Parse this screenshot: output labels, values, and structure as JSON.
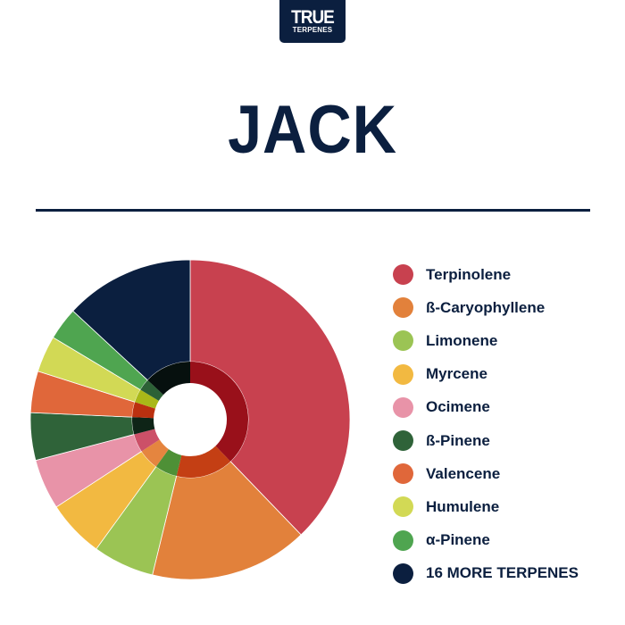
{
  "logo": {
    "line1": "TRUE",
    "line2": "TERPENES"
  },
  "title": "JACK",
  "chart_data": {
    "type": "pie",
    "title": "JACK",
    "legend_position": "right",
    "start": "top, clockwise",
    "series": [
      {
        "name": "Terpinolene",
        "value": 37.8,
        "color": "#c8414f",
        "inner_color": "#99101a"
      },
      {
        "name": "ß-Caryophyllene",
        "value": 16.0,
        "color": "#e2813b",
        "inner_color": "#c43f14"
      },
      {
        "name": "Limonene",
        "value": 6.2,
        "color": "#9bc454",
        "inner_color": "#4e9036"
      },
      {
        "name": "Myrcene",
        "value": 5.8,
        "color": "#f2b941",
        "inner_color": "#e5853f"
      },
      {
        "name": "Ocimene",
        "value": 5.1,
        "color": "#e893a8",
        "inner_color": "#cc5068"
      },
      {
        "name": "ß-Pinene",
        "value": 4.8,
        "color": "#2f6339",
        "inner_color": "#0e2417"
      },
      {
        "name": "Valencene",
        "value": 4.2,
        "color": "#e0673a",
        "inner_color": "#bb3010"
      },
      {
        "name": "Humulene",
        "value": 3.7,
        "color": "#d2d955",
        "inner_color": "#a9b818"
      },
      {
        "name": "α-Pinene",
        "value": 3.3,
        "color": "#4fa550",
        "inner_color": "#2c6136"
      },
      {
        "name": "16 MORE TERPENES",
        "value": 13.1,
        "color": "#0b1f3f",
        "inner_color": "#06100e"
      }
    ]
  }
}
